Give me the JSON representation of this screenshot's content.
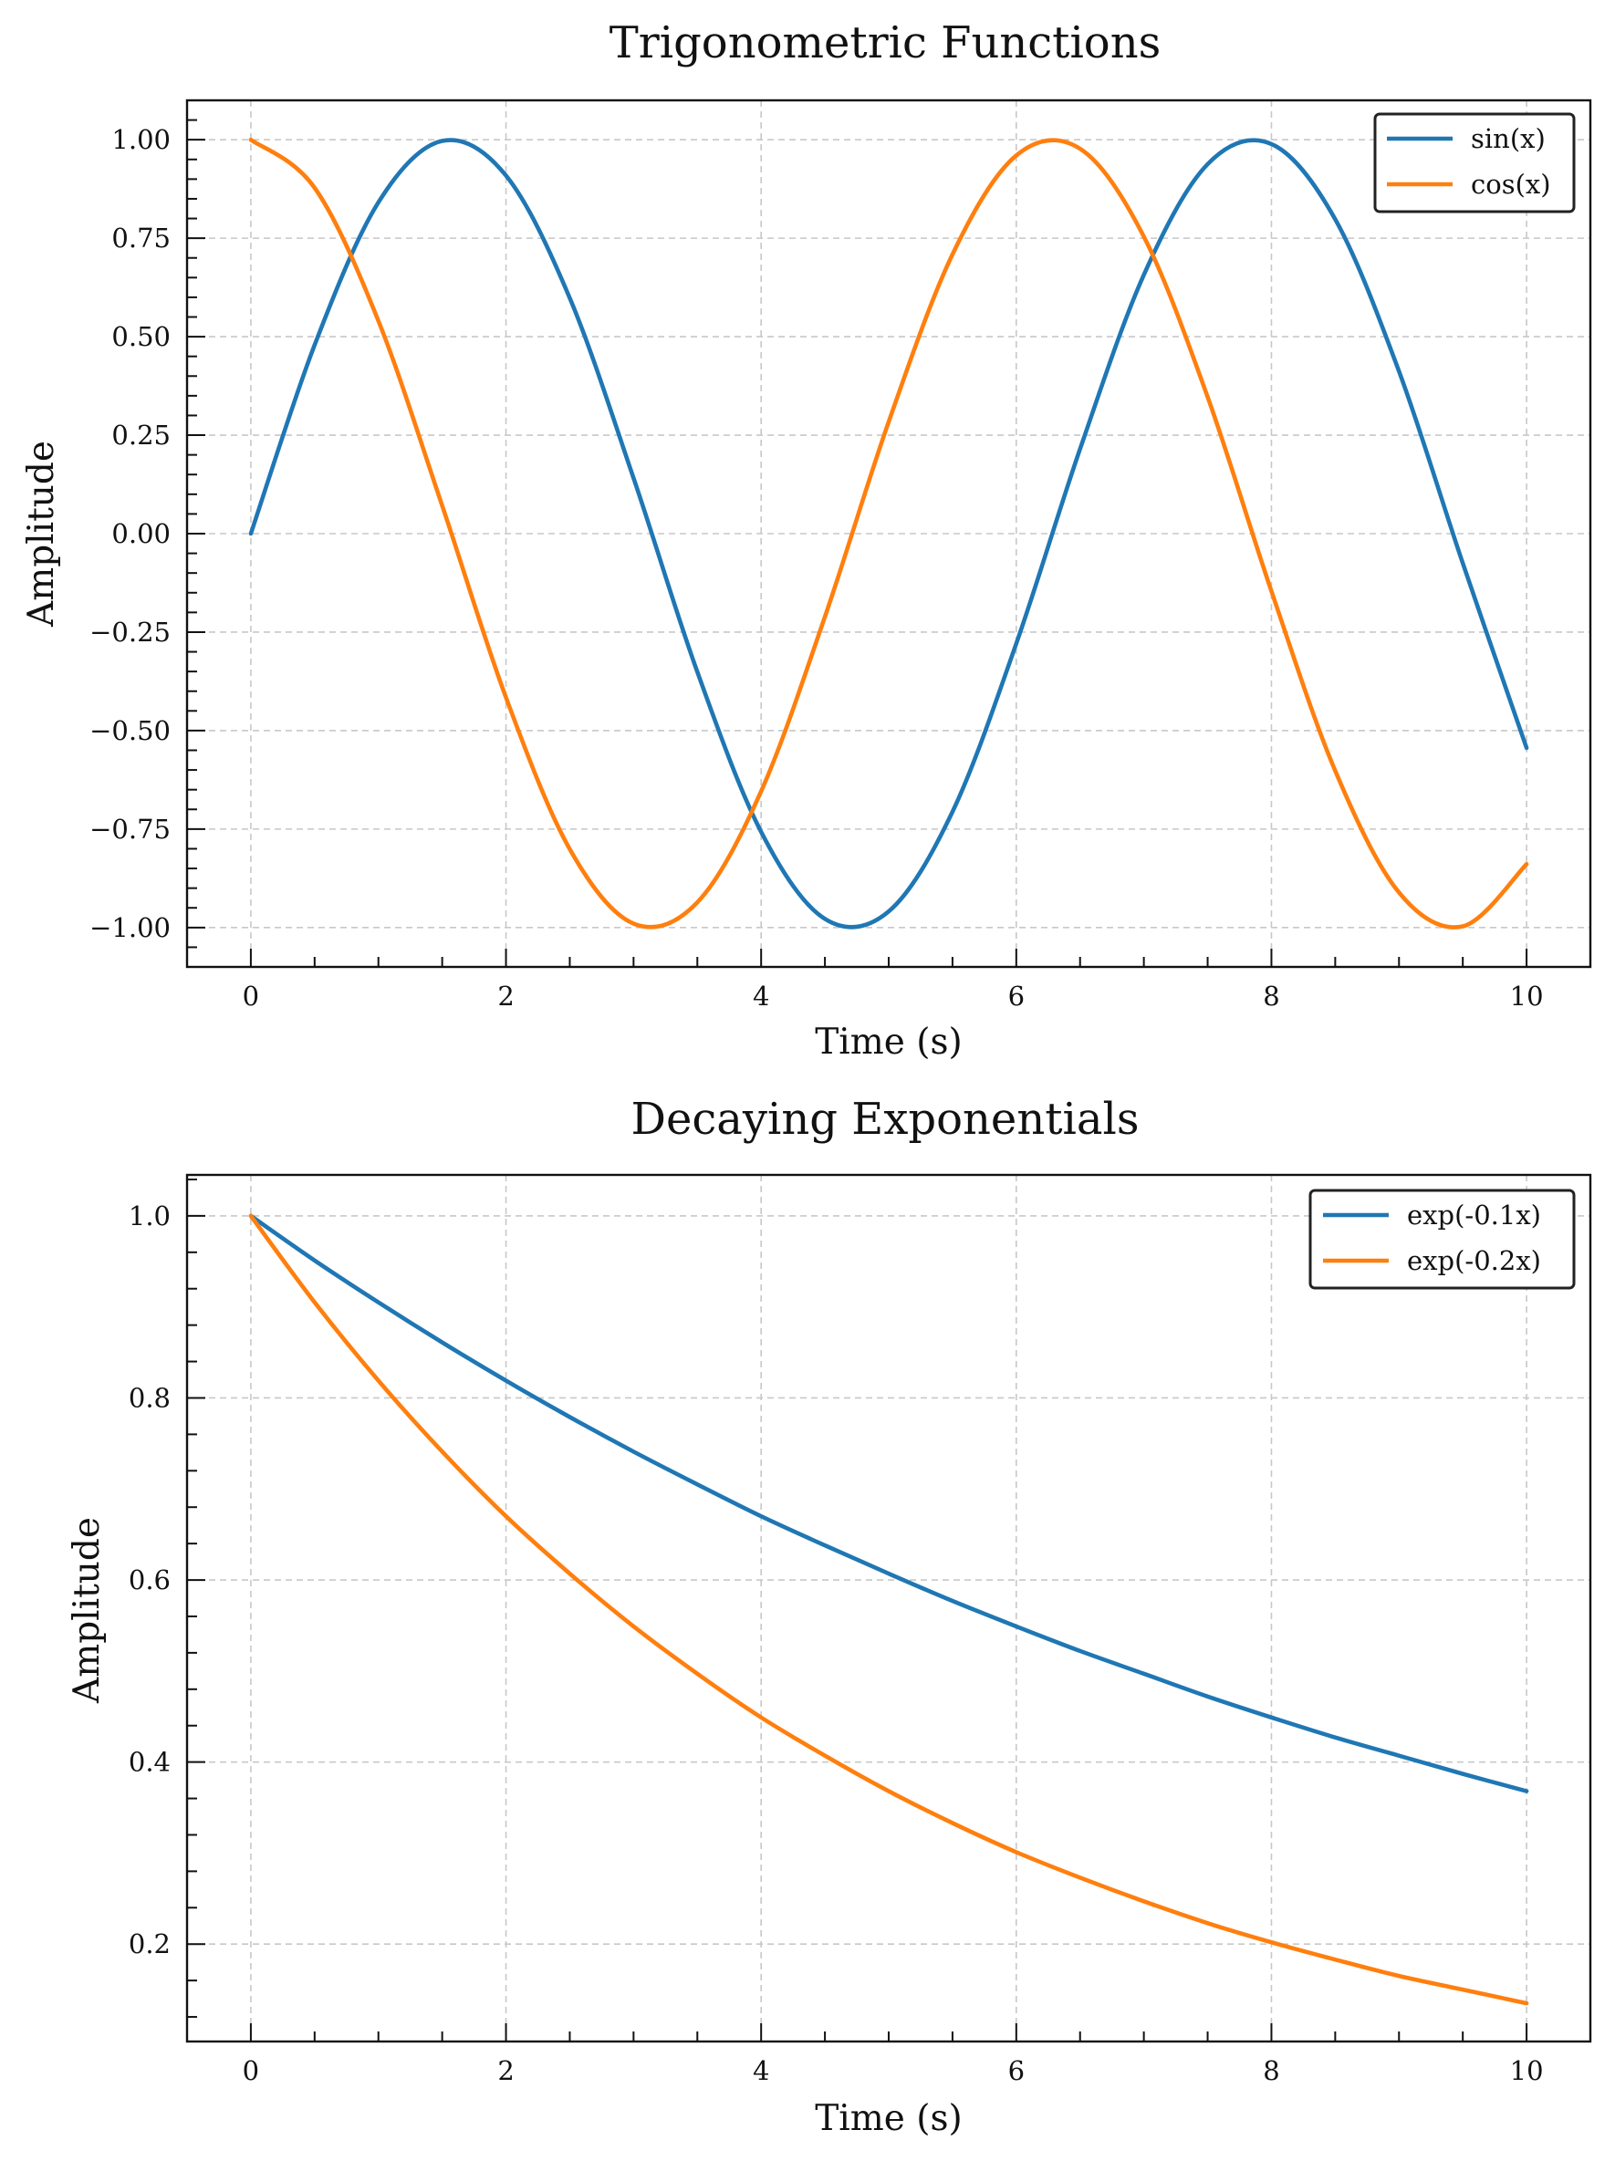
{
  "colors": {
    "series1": "#1f77b4",
    "series2": "#ff7f0e",
    "grid": "#c8c8c8",
    "axis": "#111111"
  },
  "chart_data": [
    {
      "type": "line",
      "title": "Trigonometric Functions",
      "xlabel": "Time (s)",
      "ylabel": "Amplitude",
      "xlim": [
        -0.5,
        10.5
      ],
      "ylim": [
        -1.1,
        1.1
      ],
      "xticks": [
        0,
        2,
        4,
        6,
        8,
        10
      ],
      "xtick_labels": [
        "0",
        "2",
        "4",
        "6",
        "8",
        "10"
      ],
      "yticks": [
        1.0,
        0.75,
        0.5,
        0.25,
        0.0,
        -0.25,
        -0.5,
        -0.75,
        -1.0
      ],
      "ytick_labels": [
        "1.00",
        "0.75",
        "0.50",
        "0.25",
        "0.00",
        "−0.25",
        "−0.50",
        "−0.75",
        "−1.00"
      ],
      "grid": true,
      "legend_position": "top-right",
      "x": [
        0,
        0.5,
        1,
        1.5,
        2,
        2.5,
        3,
        3.5,
        4,
        4.5,
        5,
        5.5,
        6,
        6.5,
        7,
        7.5,
        8,
        8.5,
        9,
        9.5,
        10
      ],
      "series": [
        {
          "name": "sin(x)",
          "color": "#1f77b4",
          "values": [
            0.0,
            0.479,
            0.841,
            0.997,
            0.909,
            0.598,
            0.141,
            -0.351,
            -0.757,
            -0.978,
            -0.959,
            -0.706,
            -0.279,
            0.215,
            0.657,
            0.938,
            0.989,
            0.798,
            0.412,
            -0.075,
            -0.544
          ]
        },
        {
          "name": "cos(x)",
          "color": "#ff7f0e",
          "values": [
            1.0,
            0.878,
            0.54,
            0.071,
            -0.416,
            -0.801,
            -0.99,
            -0.936,
            -0.654,
            -0.211,
            0.284,
            0.709,
            0.96,
            0.977,
            0.754,
            0.347,
            -0.146,
            -0.602,
            -0.911,
            -0.997,
            -0.839
          ]
        }
      ]
    },
    {
      "type": "line",
      "title": "Decaying Exponentials",
      "xlabel": "Time (s)",
      "ylabel": "Amplitude",
      "xlim": [
        -0.5,
        10.5
      ],
      "ylim": [
        0.093,
        1.045
      ],
      "xticks": [
        0,
        2,
        4,
        6,
        8,
        10
      ],
      "xtick_labels": [
        "0",
        "2",
        "4",
        "6",
        "8",
        "10"
      ],
      "yticks": [
        1.0,
        0.8,
        0.6,
        0.4,
        0.2
      ],
      "ytick_labels": [
        "1.0",
        "0.8",
        "0.6",
        "0.4",
        "0.2"
      ],
      "grid": true,
      "legend_position": "top-right",
      "x": [
        0,
        0.5,
        1,
        1.5,
        2,
        2.5,
        3,
        3.5,
        4,
        4.5,
        5,
        5.5,
        6,
        6.5,
        7,
        7.5,
        8,
        8.5,
        9,
        9.5,
        10
      ],
      "series": [
        {
          "name": "exp(-0.1x)",
          "color": "#1f77b4",
          "values": [
            1.0,
            0.951,
            0.905,
            0.861,
            0.819,
            0.779,
            0.741,
            0.705,
            0.67,
            0.638,
            0.607,
            0.577,
            0.549,
            0.522,
            0.497,
            0.472,
            0.449,
            0.427,
            0.407,
            0.387,
            0.368
          ]
        },
        {
          "name": "exp(-0.2x)",
          "color": "#ff7f0e",
          "values": [
            1.0,
            0.905,
            0.819,
            0.741,
            0.67,
            0.607,
            0.549,
            0.497,
            0.449,
            0.407,
            0.368,
            0.333,
            0.301,
            0.273,
            0.247,
            0.223,
            0.202,
            0.183,
            0.165,
            0.15,
            0.135
          ]
        }
      ]
    }
  ]
}
